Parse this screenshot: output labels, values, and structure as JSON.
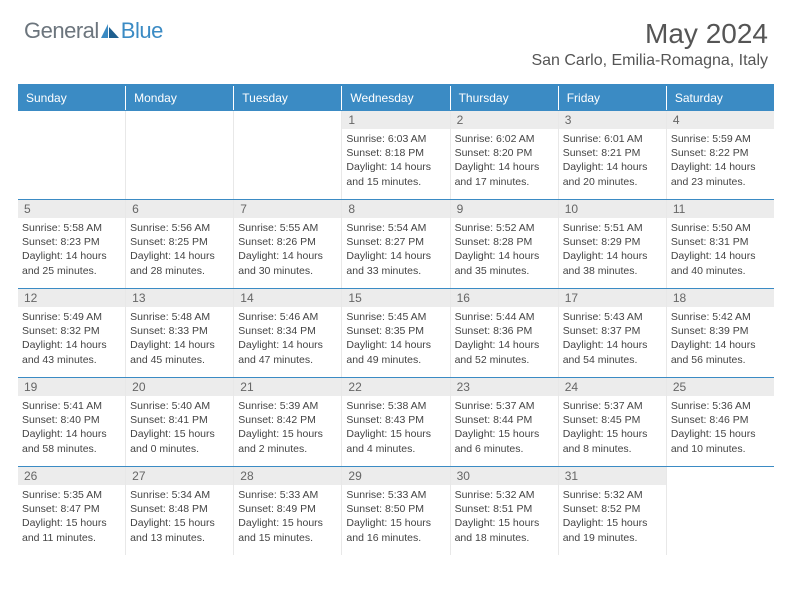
{
  "brand": {
    "text1": "General",
    "text2": "Blue"
  },
  "header": {
    "month_year": "May 2024",
    "location": "San Carlo, Emilia-Romagna, Italy"
  },
  "colors": {
    "accent": "#3b8bc4",
    "header_bg": "#ececec",
    "text_muted": "#666",
    "text_body": "#444"
  },
  "weekdays": [
    "Sunday",
    "Monday",
    "Tuesday",
    "Wednesday",
    "Thursday",
    "Friday",
    "Saturday"
  ],
  "weeks": [
    [
      {
        "day": "",
        "sunrise": "",
        "sunset": "",
        "daylight": ""
      },
      {
        "day": "",
        "sunrise": "",
        "sunset": "",
        "daylight": ""
      },
      {
        "day": "",
        "sunrise": "",
        "sunset": "",
        "daylight": ""
      },
      {
        "day": "1",
        "sunrise": "Sunrise: 6:03 AM",
        "sunset": "Sunset: 8:18 PM",
        "daylight": "Daylight: 14 hours and 15 minutes."
      },
      {
        "day": "2",
        "sunrise": "Sunrise: 6:02 AM",
        "sunset": "Sunset: 8:20 PM",
        "daylight": "Daylight: 14 hours and 17 minutes."
      },
      {
        "day": "3",
        "sunrise": "Sunrise: 6:01 AM",
        "sunset": "Sunset: 8:21 PM",
        "daylight": "Daylight: 14 hours and 20 minutes."
      },
      {
        "day": "4",
        "sunrise": "Sunrise: 5:59 AM",
        "sunset": "Sunset: 8:22 PM",
        "daylight": "Daylight: 14 hours and 23 minutes."
      }
    ],
    [
      {
        "day": "5",
        "sunrise": "Sunrise: 5:58 AM",
        "sunset": "Sunset: 8:23 PM",
        "daylight": "Daylight: 14 hours and 25 minutes."
      },
      {
        "day": "6",
        "sunrise": "Sunrise: 5:56 AM",
        "sunset": "Sunset: 8:25 PM",
        "daylight": "Daylight: 14 hours and 28 minutes."
      },
      {
        "day": "7",
        "sunrise": "Sunrise: 5:55 AM",
        "sunset": "Sunset: 8:26 PM",
        "daylight": "Daylight: 14 hours and 30 minutes."
      },
      {
        "day": "8",
        "sunrise": "Sunrise: 5:54 AM",
        "sunset": "Sunset: 8:27 PM",
        "daylight": "Daylight: 14 hours and 33 minutes."
      },
      {
        "day": "9",
        "sunrise": "Sunrise: 5:52 AM",
        "sunset": "Sunset: 8:28 PM",
        "daylight": "Daylight: 14 hours and 35 minutes."
      },
      {
        "day": "10",
        "sunrise": "Sunrise: 5:51 AM",
        "sunset": "Sunset: 8:29 PM",
        "daylight": "Daylight: 14 hours and 38 minutes."
      },
      {
        "day": "11",
        "sunrise": "Sunrise: 5:50 AM",
        "sunset": "Sunset: 8:31 PM",
        "daylight": "Daylight: 14 hours and 40 minutes."
      }
    ],
    [
      {
        "day": "12",
        "sunrise": "Sunrise: 5:49 AM",
        "sunset": "Sunset: 8:32 PM",
        "daylight": "Daylight: 14 hours and 43 minutes."
      },
      {
        "day": "13",
        "sunrise": "Sunrise: 5:48 AM",
        "sunset": "Sunset: 8:33 PM",
        "daylight": "Daylight: 14 hours and 45 minutes."
      },
      {
        "day": "14",
        "sunrise": "Sunrise: 5:46 AM",
        "sunset": "Sunset: 8:34 PM",
        "daylight": "Daylight: 14 hours and 47 minutes."
      },
      {
        "day": "15",
        "sunrise": "Sunrise: 5:45 AM",
        "sunset": "Sunset: 8:35 PM",
        "daylight": "Daylight: 14 hours and 49 minutes."
      },
      {
        "day": "16",
        "sunrise": "Sunrise: 5:44 AM",
        "sunset": "Sunset: 8:36 PM",
        "daylight": "Daylight: 14 hours and 52 minutes."
      },
      {
        "day": "17",
        "sunrise": "Sunrise: 5:43 AM",
        "sunset": "Sunset: 8:37 PM",
        "daylight": "Daylight: 14 hours and 54 minutes."
      },
      {
        "day": "18",
        "sunrise": "Sunrise: 5:42 AM",
        "sunset": "Sunset: 8:39 PM",
        "daylight": "Daylight: 14 hours and 56 minutes."
      }
    ],
    [
      {
        "day": "19",
        "sunrise": "Sunrise: 5:41 AM",
        "sunset": "Sunset: 8:40 PM",
        "daylight": "Daylight: 14 hours and 58 minutes."
      },
      {
        "day": "20",
        "sunrise": "Sunrise: 5:40 AM",
        "sunset": "Sunset: 8:41 PM",
        "daylight": "Daylight: 15 hours and 0 minutes."
      },
      {
        "day": "21",
        "sunrise": "Sunrise: 5:39 AM",
        "sunset": "Sunset: 8:42 PM",
        "daylight": "Daylight: 15 hours and 2 minutes."
      },
      {
        "day": "22",
        "sunrise": "Sunrise: 5:38 AM",
        "sunset": "Sunset: 8:43 PM",
        "daylight": "Daylight: 15 hours and 4 minutes."
      },
      {
        "day": "23",
        "sunrise": "Sunrise: 5:37 AM",
        "sunset": "Sunset: 8:44 PM",
        "daylight": "Daylight: 15 hours and 6 minutes."
      },
      {
        "day": "24",
        "sunrise": "Sunrise: 5:37 AM",
        "sunset": "Sunset: 8:45 PM",
        "daylight": "Daylight: 15 hours and 8 minutes."
      },
      {
        "day": "25",
        "sunrise": "Sunrise: 5:36 AM",
        "sunset": "Sunset: 8:46 PM",
        "daylight": "Daylight: 15 hours and 10 minutes."
      }
    ],
    [
      {
        "day": "26",
        "sunrise": "Sunrise: 5:35 AM",
        "sunset": "Sunset: 8:47 PM",
        "daylight": "Daylight: 15 hours and 11 minutes."
      },
      {
        "day": "27",
        "sunrise": "Sunrise: 5:34 AM",
        "sunset": "Sunset: 8:48 PM",
        "daylight": "Daylight: 15 hours and 13 minutes."
      },
      {
        "day": "28",
        "sunrise": "Sunrise: 5:33 AM",
        "sunset": "Sunset: 8:49 PM",
        "daylight": "Daylight: 15 hours and 15 minutes."
      },
      {
        "day": "29",
        "sunrise": "Sunrise: 5:33 AM",
        "sunset": "Sunset: 8:50 PM",
        "daylight": "Daylight: 15 hours and 16 minutes."
      },
      {
        "day": "30",
        "sunrise": "Sunrise: 5:32 AM",
        "sunset": "Sunset: 8:51 PM",
        "daylight": "Daylight: 15 hours and 18 minutes."
      },
      {
        "day": "31",
        "sunrise": "Sunrise: 5:32 AM",
        "sunset": "Sunset: 8:52 PM",
        "daylight": "Daylight: 15 hours and 19 minutes."
      },
      {
        "day": "",
        "sunrise": "",
        "sunset": "",
        "daylight": ""
      }
    ]
  ]
}
